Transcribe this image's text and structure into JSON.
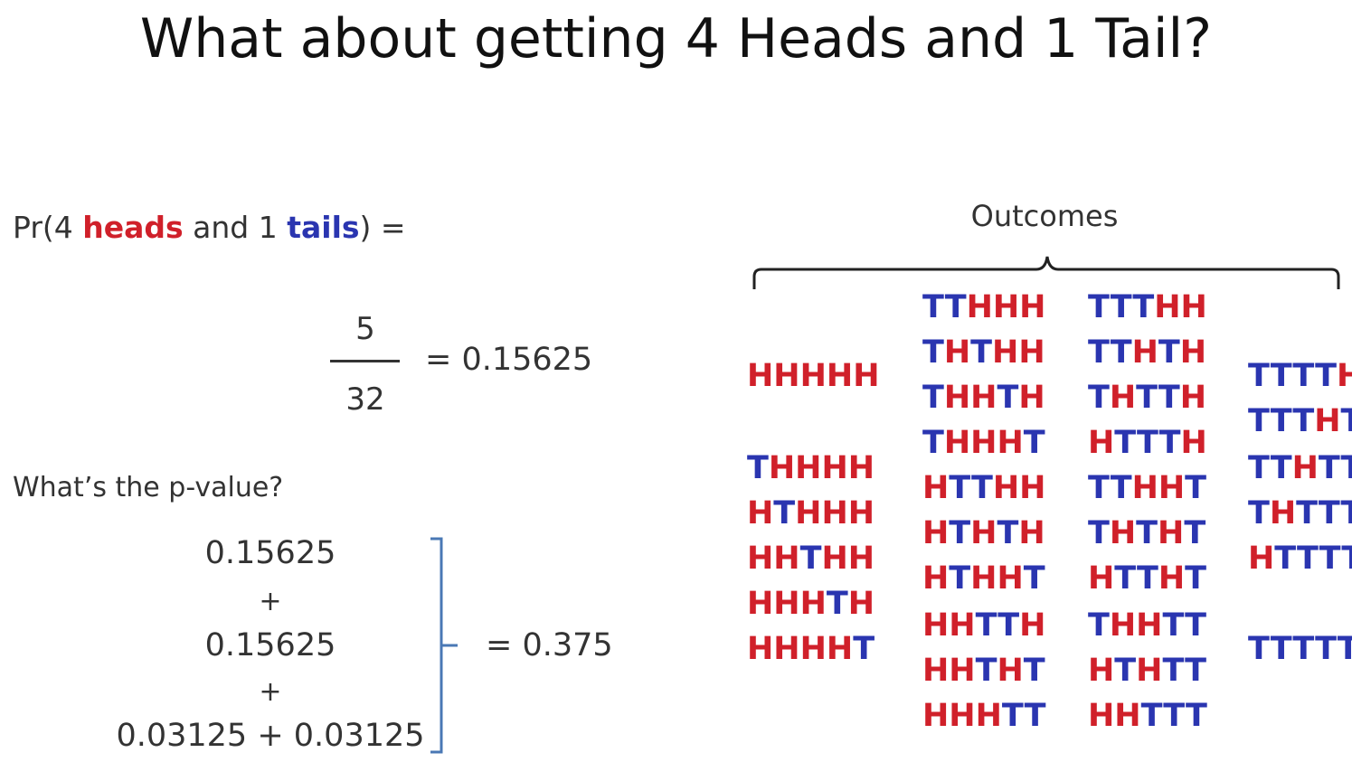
{
  "title": "What about getting 4 Heads and 1 Tail?",
  "probability": {
    "prefix": "Pr(4 ",
    "heads_word": "heads",
    "middle": " and 1 ",
    "tails_word": "tails",
    "suffix": ") =",
    "numerator": "5",
    "denominator": "32",
    "result": "= 0.15625"
  },
  "pvalue": {
    "question": "What’s the p-value?",
    "line1": "0.15625",
    "plus1": "+",
    "line2": "0.15625",
    "plus2": "+",
    "line3": "0.03125 + 0.03125",
    "result": "= 0.375"
  },
  "outcomes": {
    "label": "Outcomes",
    "colors": {
      "H": "#d0202a",
      "T": "#2a35b0"
    },
    "columns": [
      [
        "HHHHH",
        "THHHH",
        "HTHHH",
        "HHTHH",
        "HHHTH",
        "HHHHT"
      ],
      [
        "TTHHH",
        "THTHH",
        "THHTH",
        "THHHT",
        "HTTHH",
        "HTHTH",
        "HTHHT",
        "HHTTH",
        "HHTHT",
        "HHHTT"
      ],
      [
        "TTTHH",
        "TTHTH",
        "THTTH",
        "HTTTH",
        "TTHHT",
        "THTHT",
        "HTTHT",
        "THHTT",
        "HTHTT",
        "HHTTT"
      ],
      [
        "TTTTH",
        "TTTHT",
        "TTHTT",
        "THTTT",
        "HTTTT",
        "TTTTT"
      ]
    ]
  }
}
